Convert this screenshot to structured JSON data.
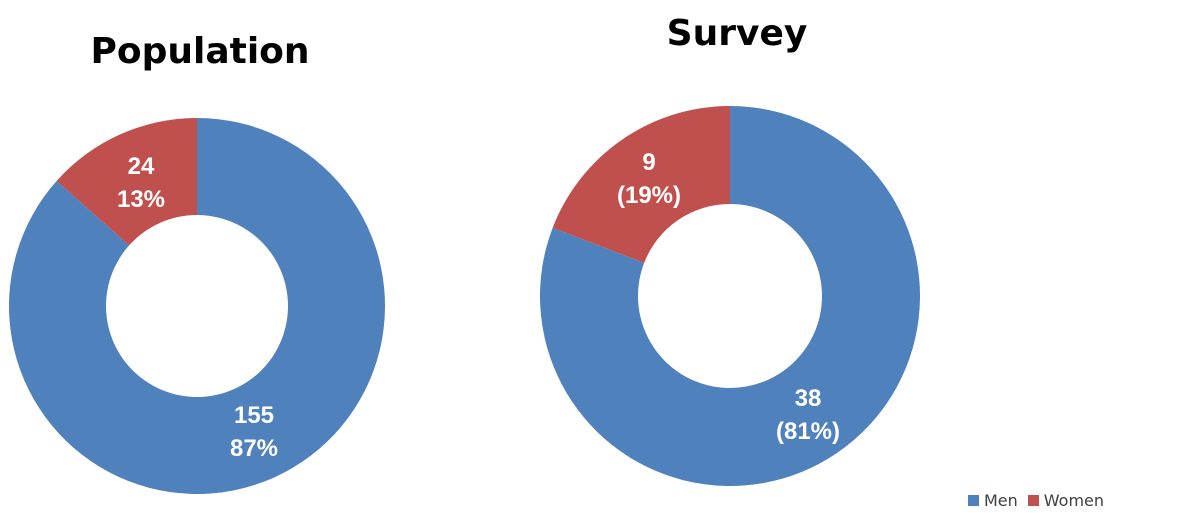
{
  "chart_data": [
    {
      "type": "pie",
      "donut": true,
      "title": "Population",
      "categories": [
        "Men",
        "Women"
      ],
      "values": [
        155,
        24
      ],
      "percent_labels": [
        "87%",
        "13%"
      ],
      "colors": [
        "#4f81bd",
        "#c0504d"
      ]
    },
    {
      "type": "pie",
      "donut": true,
      "title": "Survey",
      "categories": [
        "Men",
        "Women"
      ],
      "values": [
        38,
        9
      ],
      "percent_labels": [
        "(81%)",
        "(19%)"
      ],
      "colors": [
        "#4f81bd",
        "#c0504d"
      ]
    }
  ],
  "legend": {
    "position": "bottom-right",
    "items": [
      {
        "label": "Men",
        "color": "#4f81bd"
      },
      {
        "label": "Women",
        "color": "#c0504d"
      }
    ]
  }
}
